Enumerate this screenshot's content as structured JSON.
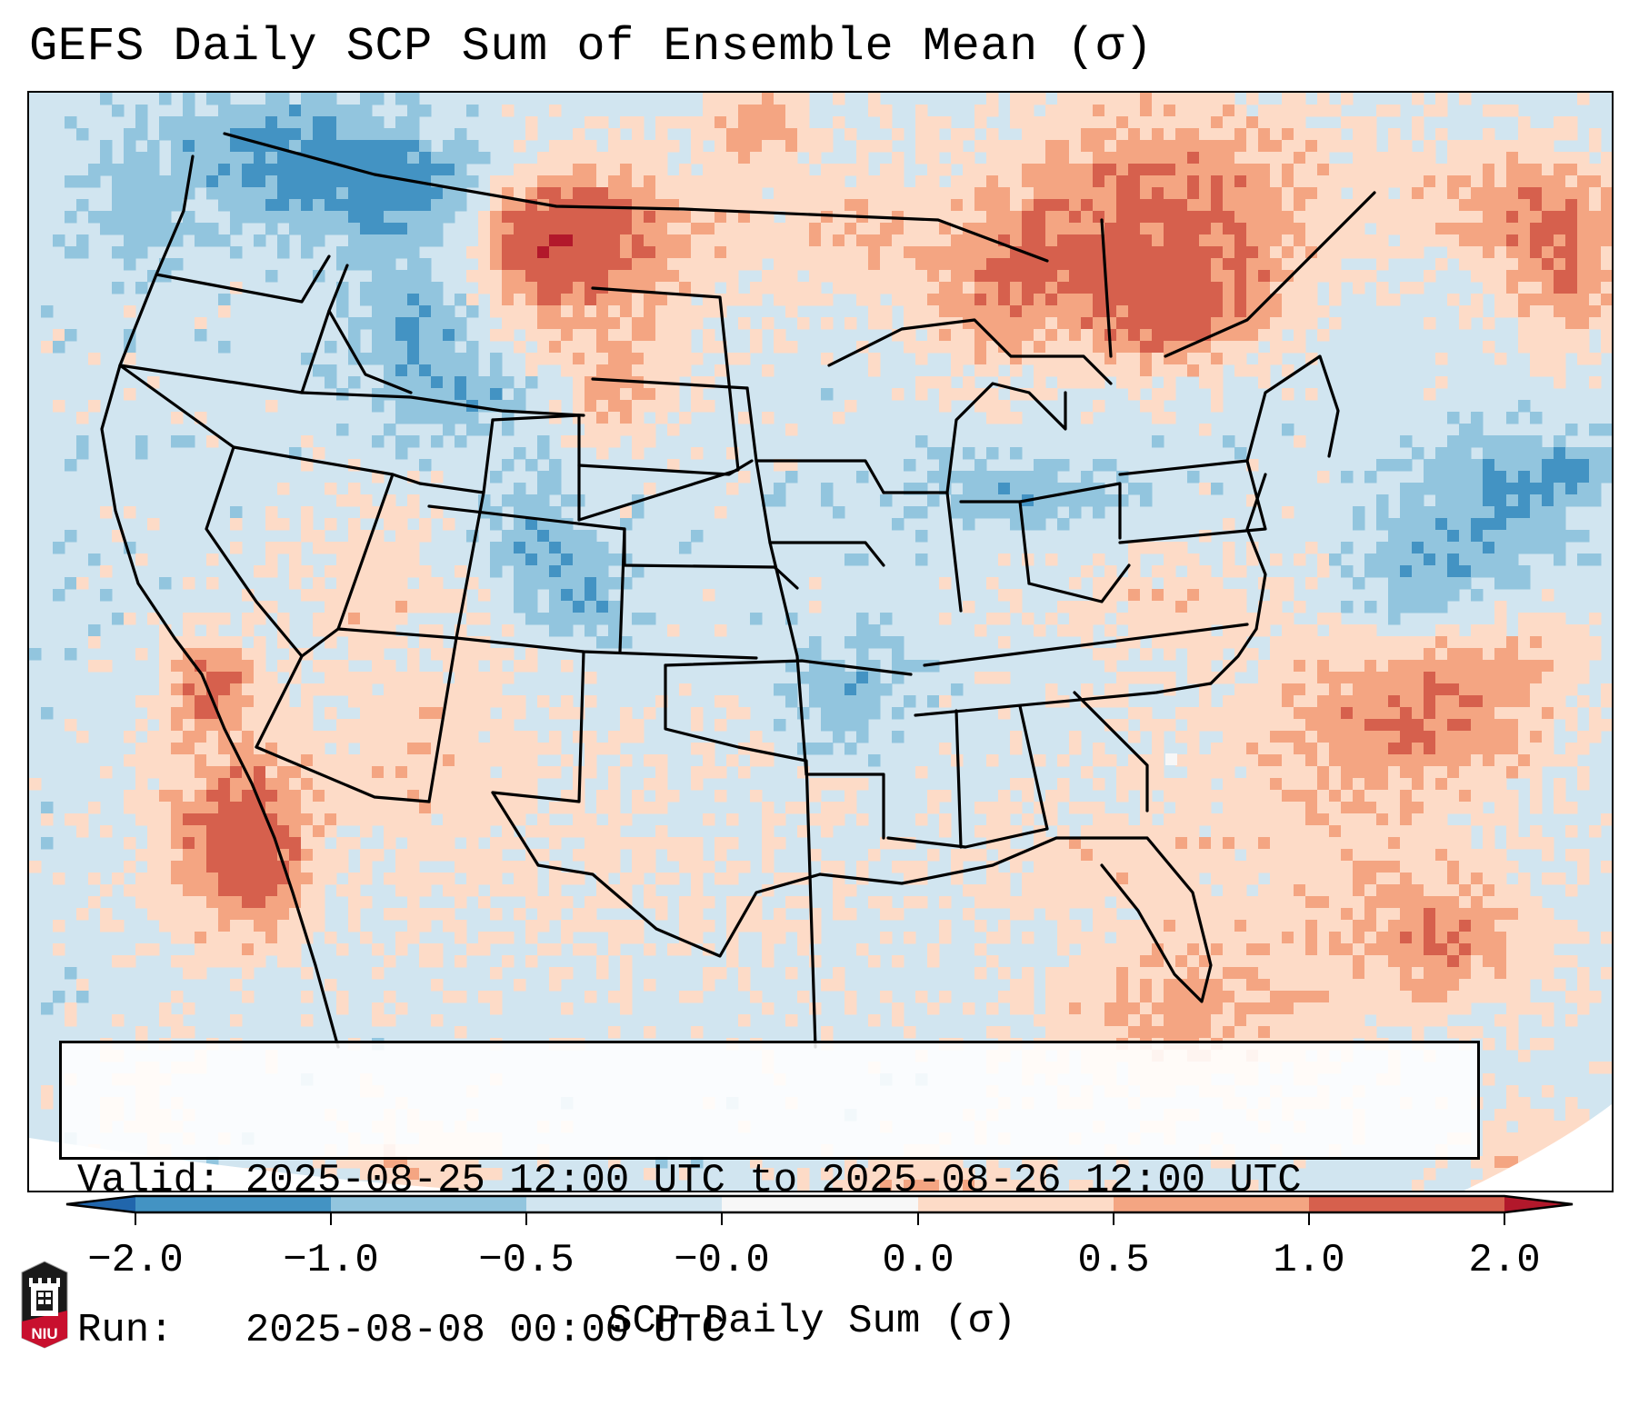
{
  "header": {
    "title": "GEFS Daily SCP Sum of Ensemble Mean (σ)"
  },
  "info_box": {
    "valid_line": "Valid: 2025-08-25 12:00 UTC to 2025-08-26 12:00 UTC",
    "run_line": "Run:   2025-08-08 00:00 UTC"
  },
  "chart_data": {
    "type": "heatmap",
    "title": "GEFS Daily SCP Sum of Ensemble Mean (σ)",
    "variable": "SCP Daily Sum",
    "units": "σ",
    "region": "Contiguous United States",
    "valid_start": "2025-08-25 12:00 UTC",
    "valid_end": "2025-08-26 12:00 UTC",
    "run": "2025-08-08 00:00 UTC",
    "colorbar": {
      "label": "SCP Daily Sum (σ)",
      "ticks": [
        "−2.0",
        "−1.0",
        "−0.5",
        "−0.0",
        "0.0",
        "0.5",
        "1.0",
        "2.0"
      ],
      "bins": [
        {
          "range": "< -2.0",
          "color": "#2166ac"
        },
        {
          "range": "-2.0 to -1.0",
          "color": "#4393c3"
        },
        {
          "range": "-1.0 to -0.5",
          "color": "#92c5de"
        },
        {
          "range": "-0.5 to -0.0",
          "color": "#d1e5f0"
        },
        {
          "range": "-0.0 to 0.0",
          "color": "#f7f7f7"
        },
        {
          "range": "0.0 to 0.5",
          "color": "#fddbc7"
        },
        {
          "range": "0.5 to 1.0",
          "color": "#f4a582"
        },
        {
          "range": "1.0 to 2.0",
          "color": "#d6604d"
        },
        {
          "range": "> 2.0",
          "color": "#b2182b"
        }
      ],
      "extend": "both"
    },
    "notable_features": [
      {
        "area": "Southern California / Baja coast",
        "level": "1.0 to >2.0"
      },
      {
        "area": "Southern Quebec / Ontario",
        "level": "1.0 to >2.0"
      },
      {
        "area": "Eastern Montana",
        "level": "1.0 to 2.0"
      },
      {
        "area": "Upper Great Lakes",
        "level": "0.5 to 2.0"
      },
      {
        "area": "Maine / Atlantic Canada",
        "level": "1.0 to >2.0"
      },
      {
        "area": "Western Atlantic off Carolinas",
        "level": "0.5 to 2.0"
      },
      {
        "area": "Bahamas",
        "level": "1.0 to 2.0"
      },
      {
        "area": "Pacific Northwest / Idaho",
        "level": "-1.0 to -0.5"
      },
      {
        "area": "Colorado",
        "level": "-1.0 to -0.5"
      },
      {
        "area": "Mid-Atlantic offshore",
        "level": "-1.0 to -0.5"
      }
    ]
  },
  "logo": {
    "text": "NIU",
    "colors": {
      "shield": "#1a1a1a",
      "band": "#c8102e"
    }
  }
}
